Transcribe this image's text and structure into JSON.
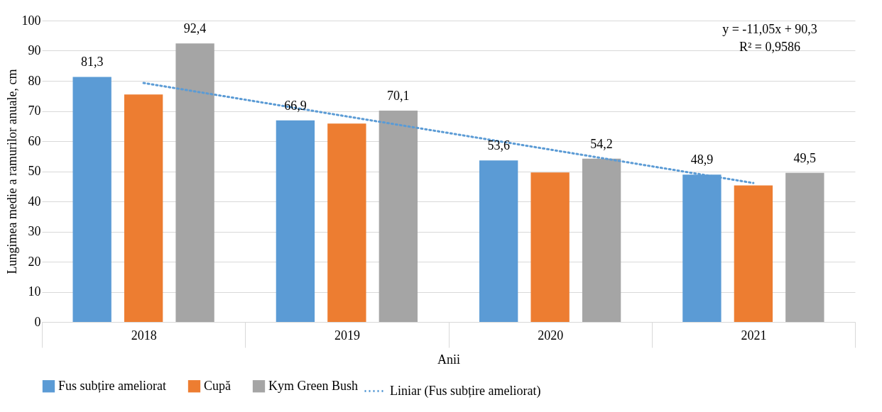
{
  "chart_data": {
    "type": "bar",
    "ylabel": "Lungimea medie a ramurilor anuale, cm",
    "xlabel": "Anii",
    "categories": [
      "2018",
      "2019",
      "2020",
      "2021"
    ],
    "series": [
      {
        "name": "Fus subțire ameliorat",
        "color": "#5b9bd5",
        "values": [
          81.3,
          66.9,
          53.6,
          48.9
        ],
        "value_labels": [
          "81,3",
          "66,9",
          "53,6",
          "48,9"
        ]
      },
      {
        "name": "Cupă",
        "color": "#ed7d31",
        "values": [
          75.5,
          65.8,
          49.6,
          45.3
        ]
      },
      {
        "name": "Kym Green Bush",
        "color": "#a5a5a5",
        "values": [
          92.4,
          70.1,
          54.2,
          49.5
        ],
        "value_labels": [
          "92,4",
          "70,1",
          "54,2",
          "49,5"
        ]
      },
      {
        "name": "Liniar (Fus subțire ameliorat)",
        "type": "line",
        "color": "#5b9bd5",
        "line_style": "dotted",
        "values": [
          79.3,
          68.2,
          57.2,
          46.1
        ]
      }
    ],
    "ylim": [
      0,
      100
    ],
    "yticks": [
      0,
      10,
      20,
      30,
      40,
      50,
      60,
      70,
      80,
      90,
      100
    ],
    "grid": "y",
    "legend": "bottom",
    "annotations": [
      "y = -11,05x + 90,3",
      "R² = 0,9586"
    ]
  }
}
